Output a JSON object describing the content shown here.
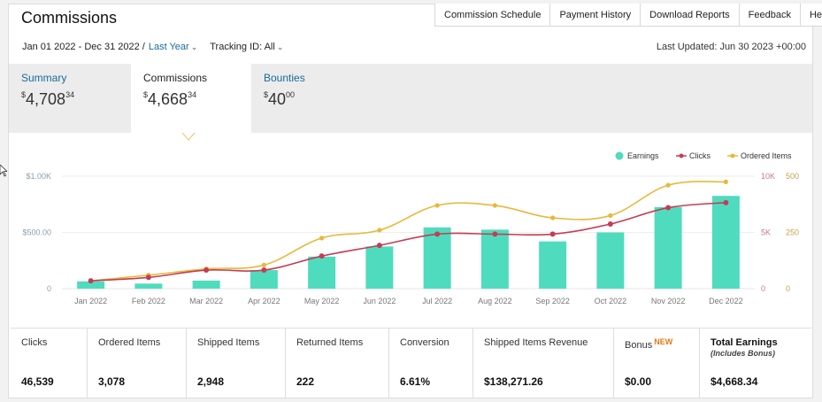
{
  "header": {
    "title": "Commissions"
  },
  "nav": [
    "Commission Schedule",
    "Payment History",
    "Download Reports",
    "Feedback",
    "Help"
  ],
  "filters": {
    "date_range": "Jan 01 2022 - Dec 31 2022 /",
    "period": "Last Year",
    "tracking_id": "Tracking ID: All"
  },
  "last_updated": "Last Updated: Jun 30 2023 +00:00",
  "tabs": [
    {
      "label": "Summary",
      "currency": "$",
      "amount": "4,708",
      "cents": "34"
    },
    {
      "label": "Commissions",
      "currency": "$",
      "amount": "4,668",
      "cents": "34"
    },
    {
      "label": "Bounties",
      "currency": "$",
      "amount": "40",
      "cents": "00"
    }
  ],
  "chart_data": {
    "type": "bar+line",
    "categories": [
      "Jan 2022",
      "Feb 2022",
      "Mar 2022",
      "Apr 2022",
      "May 2022",
      "Jun 2022",
      "Jul 2022",
      "Aug 2022",
      "Sep 2022",
      "Oct 2022",
      "Nov 2022",
      "Dec 2022"
    ],
    "legend": [
      "Earnings",
      "Clicks",
      "Ordered Items"
    ],
    "legend_position": "top-right",
    "left_axis": {
      "ticks": [
        "0",
        "$500.00",
        "$1.00K"
      ],
      "ylim": [
        0,
        1000
      ]
    },
    "right_axis_clicks": {
      "ticks": [
        "0",
        "5K",
        "10K"
      ],
      "ylim": [
        0,
        10000
      ]
    },
    "right_axis_ordered": {
      "ticks": [
        "0",
        "250",
        "500"
      ],
      "ylim": [
        0,
        500
      ]
    },
    "series": [
      {
        "name": "Earnings",
        "type": "bar",
        "axis": "left",
        "color": "#4fdcbe",
        "values": [
          65,
          45,
          72,
          165,
          285,
          375,
          545,
          525,
          420,
          500,
          725,
          825
        ]
      },
      {
        "name": "Clicks",
        "type": "line",
        "axis": "clicks",
        "color": "#c43d54",
        "values": [
          700,
          1000,
          1650,
          1650,
          2900,
          3850,
          4850,
          4850,
          4850,
          5750,
          7200,
          7650
        ]
      },
      {
        "name": "Ordered Items",
        "type": "line",
        "axis": "ordered",
        "color": "#e8b83a",
        "values": [
          35,
          60,
          88,
          105,
          225,
          260,
          370,
          370,
          315,
          325,
          460,
          475
        ]
      }
    ],
    "grid": true
  },
  "stats": [
    {
      "label": "Clicks",
      "value": "46,539"
    },
    {
      "label": "Ordered Items",
      "value": "3,078"
    },
    {
      "label": "Shipped Items",
      "value": "2,948"
    },
    {
      "label": "Returned Items",
      "value": "222"
    },
    {
      "label": "Conversion",
      "value": "6.61%"
    },
    {
      "label": "Shipped Items Revenue",
      "value": "$138,271.26"
    },
    {
      "label": "Bonus",
      "badge": "NEW",
      "value": "$0.00"
    },
    {
      "label": "Total Earnings",
      "sublabel": "(Includes Bonus)",
      "value": "$4,668.34"
    }
  ]
}
